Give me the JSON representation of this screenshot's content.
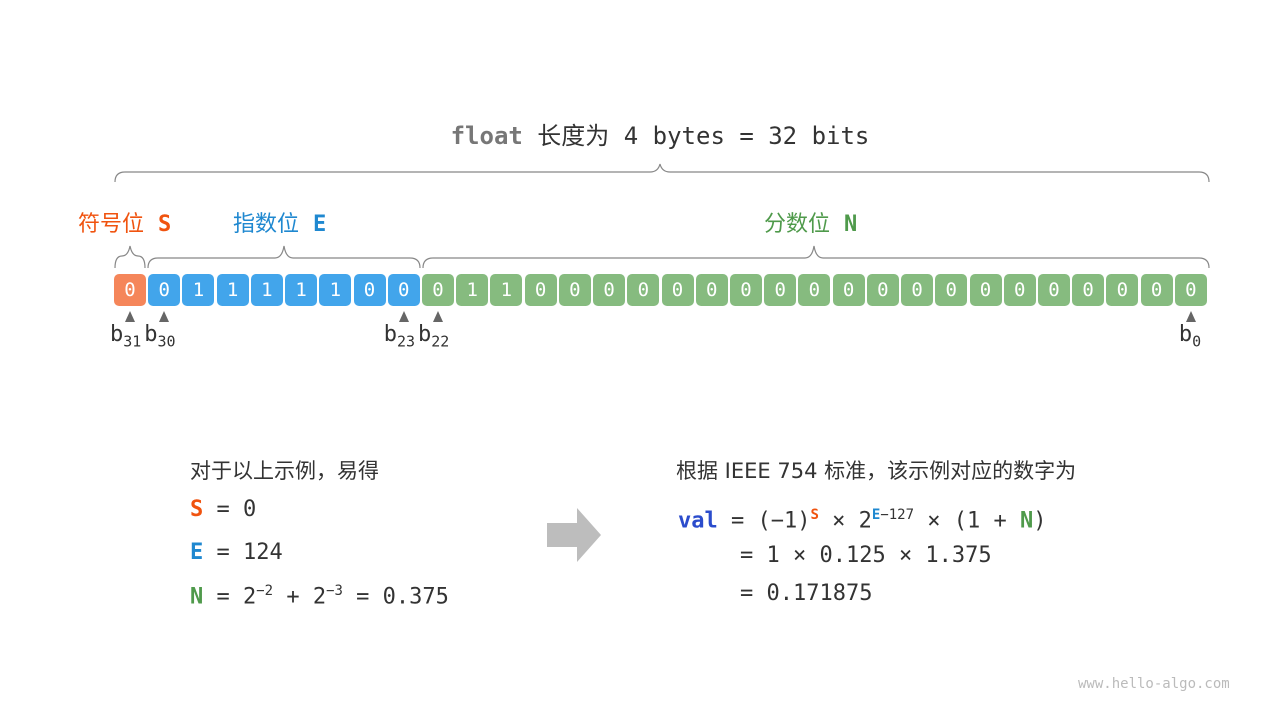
{
  "title": {
    "keyword": "float",
    "text": "长度为 4 bytes = 32 bits"
  },
  "labels": {
    "sign": {
      "text": "符号位",
      "symbol": "S",
      "color": "#f0530f"
    },
    "exponent": {
      "text": "指数位",
      "symbol": "E",
      "color": "#1f88d0"
    },
    "fraction": {
      "text": "分数位",
      "symbol": "N",
      "color": "#4f9a4b"
    }
  },
  "bits": {
    "sign": [
      "0"
    ],
    "exponent": [
      "0",
      "1",
      "1",
      "1",
      "1",
      "1",
      "0",
      "0"
    ],
    "fraction": [
      "0",
      "1",
      "1",
      "0",
      "0",
      "0",
      "0",
      "0",
      "0",
      "0",
      "0",
      "0",
      "0",
      "0",
      "0",
      "0",
      "0",
      "0",
      "0",
      "0",
      "0",
      "0",
      "0"
    ]
  },
  "cell_colors": {
    "sign": "#f5865a",
    "exponent": "#42a5eb",
    "fraction": "#86bb7f"
  },
  "bit_markers": [
    {
      "b": "b",
      "sub": "31",
      "index": 0
    },
    {
      "b": "b",
      "sub": "30",
      "index": 1
    },
    {
      "b": "b",
      "sub": "23",
      "index": 8
    },
    {
      "b": "b",
      "sub": "22",
      "index": 9
    },
    {
      "b": "b",
      "sub": "0",
      "index": 31
    }
  ],
  "left": {
    "heading": "对于以上示例，易得",
    "s_line": {
      "sym": "S",
      "rest": " = 0"
    },
    "e_line": {
      "sym": "E",
      "rest": " = 124"
    },
    "n_line": {
      "sym": "N",
      "eq": " = 2",
      "exp1": "−2",
      "plus": " + 2",
      "exp2": "−3",
      "rest": " = 0.375"
    }
  },
  "right": {
    "heading": "根据 IEEE 754 标准，该示例对应的数字为",
    "val": "val",
    "line1": {
      "a": " = (−1)",
      "s": "S",
      "b": " × 2",
      "e": "E",
      "e_rest": "−127",
      "c": " × (1 + ",
      "n": "N",
      "d": ")"
    },
    "line2": "= 1 × 0.125 × 1.375",
    "line3": "= 0.171875"
  },
  "arrow_icon": "right-arrow",
  "watermark": "www.hello-algo.com"
}
